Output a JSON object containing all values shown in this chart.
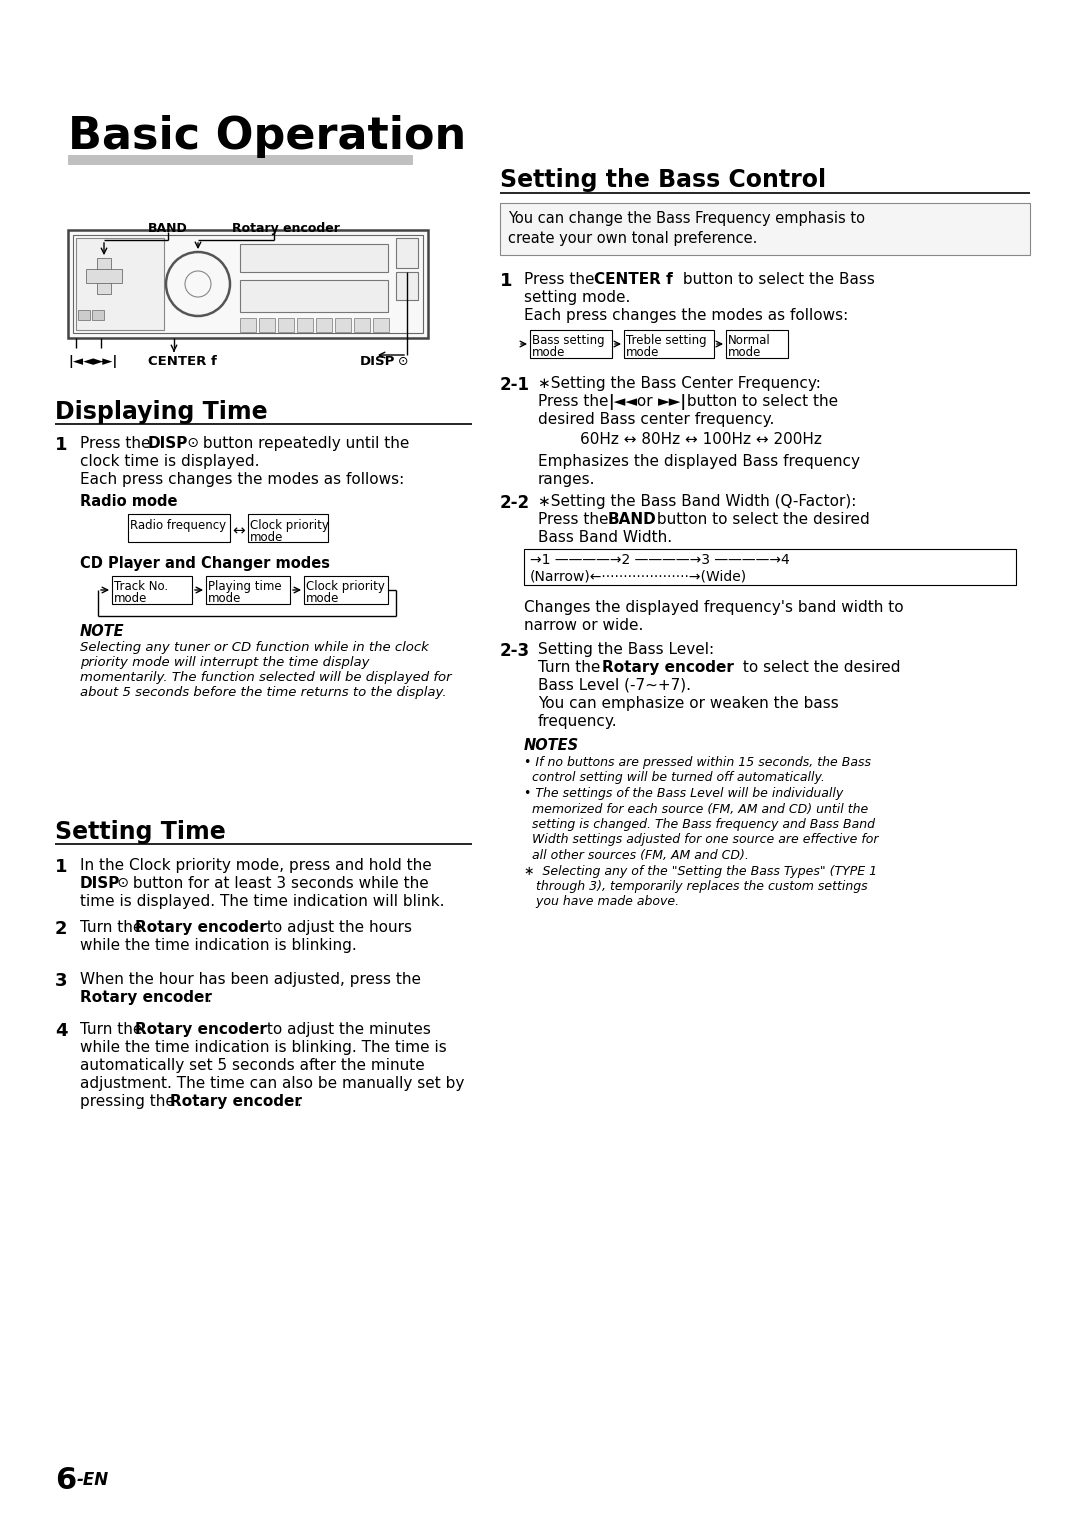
{
  "bg_color": "#ffffff",
  "title": "Basic Operation",
  "page_num": "6",
  "page_sub": "-EN",
  "fig_w": 10.8,
  "fig_h": 15.28,
  "dpi": 100
}
